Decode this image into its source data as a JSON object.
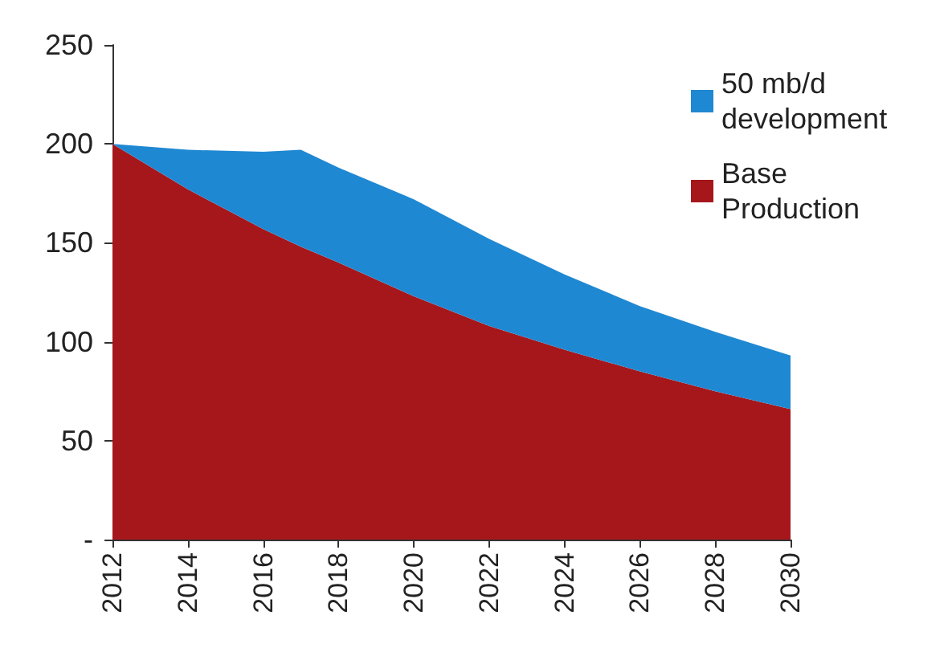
{
  "chart_data": {
    "type": "area",
    "stacked": true,
    "x": [
      2012,
      2014,
      2016,
      2017,
      2018,
      2020,
      2022,
      2024,
      2026,
      2028,
      2030
    ],
    "series": [
      {
        "name": "Base Production",
        "color": "#a6171c",
        "values": [
          200,
          177,
          157,
          148,
          140,
          123,
          108,
          96,
          85,
          75,
          66
        ]
      },
      {
        "name": "50 mb/d development",
        "color": "#1f88d2",
        "values": [
          0,
          20,
          39,
          49,
          48,
          49,
          44,
          38,
          33,
          30,
          27
        ]
      }
    ],
    "xlim": [
      2012,
      2030
    ],
    "xticks": [
      2012,
      2014,
      2016,
      2018,
      2020,
      2022,
      2024,
      2026,
      2028,
      2030
    ],
    "ylim": [
      0,
      250
    ],
    "yticks": [
      {
        "value": 0,
        "label": "-"
      },
      50,
      100,
      150,
      200,
      250
    ],
    "grid": false,
    "legend": "top right"
  }
}
